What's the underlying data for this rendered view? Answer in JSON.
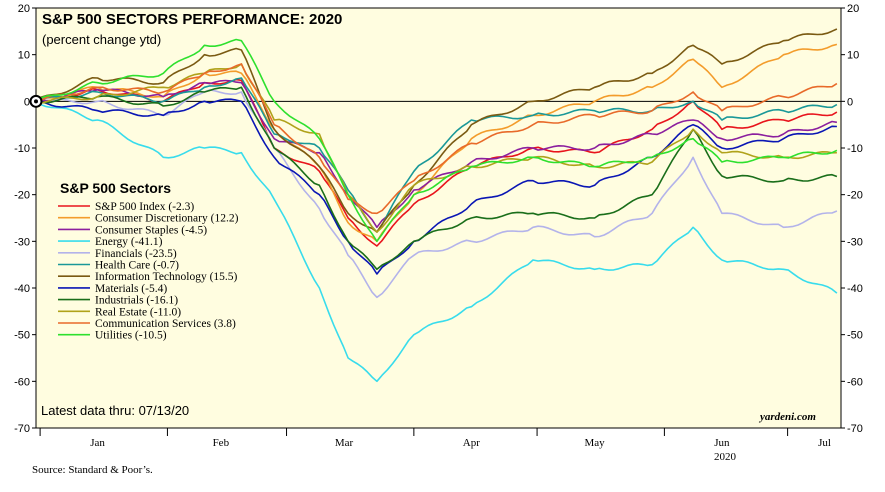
{
  "chart_data": {
    "type": "line",
    "title": "S&P 500 SECTORS PERFORMANCE: 2020",
    "subtitle": "(percent change ytd)",
    "legend_title": "S&P 500 Sectors",
    "legend_position": "left",
    "ylim": [
      -70,
      20
    ],
    "yticks": [
      20,
      10,
      0,
      -10,
      -20,
      -30,
      -40,
      -50,
      -60,
      -70
    ],
    "xlim": [
      "2019-12-31",
      "2020-07-14"
    ],
    "months": [
      {
        "label": "Jan",
        "date": "2020-01-15"
      },
      {
        "label": "Feb",
        "date": "2020-02-14"
      },
      {
        "label": "Mar",
        "date": "2020-03-15"
      },
      {
        "label": "Apr",
        "date": "2020-04-15"
      },
      {
        "label": "May",
        "date": "2020-05-15"
      },
      {
        "label": "Jun",
        "date": "2020-06-15"
      },
      {
        "label": "Jul",
        "date": "2020-07-10"
      }
    ],
    "year_label": "2020",
    "x": [
      "2019-12-31",
      "2020-01-15",
      "2020-01-31",
      "2020-02-10",
      "2020-02-19",
      "2020-02-27",
      "2020-03-09",
      "2020-03-16",
      "2020-03-23",
      "2020-04-01",
      "2020-04-15",
      "2020-04-30",
      "2020-05-15",
      "2020-05-29",
      "2020-06-08",
      "2020-06-15",
      "2020-06-30",
      "2020-07-13"
    ],
    "series": [
      {
        "name": "S&P 500 Index (-2.3)",
        "color": "#e8141c",
        "values": [
          0,
          2.5,
          0,
          4,
          4.5,
          -10,
          -15,
          -25,
          -31,
          -22,
          -14,
          -10,
          -11,
          -6,
          0,
          -6,
          -4,
          -2.3
        ]
      },
      {
        "name": "Consumer Discretionary (12.2)",
        "color": "#f39c2b",
        "values": [
          0,
          3,
          1,
          6,
          6,
          -6,
          -14,
          -26,
          -30,
          -20,
          -8,
          -3,
          0,
          3,
          9,
          3,
          10,
          12.2
        ]
      },
      {
        "name": "Consumer Staples (-4.5)",
        "color": "#8b1f9e",
        "values": [
          0,
          2.5,
          1,
          4,
          4,
          -8,
          -11,
          -20,
          -27,
          -19,
          -13,
          -10,
          -10,
          -7,
          -4,
          -8,
          -7,
          -4.5
        ]
      },
      {
        "name": "Energy (-41.1)",
        "color": "#38dcec",
        "values": [
          0,
          -4,
          -12,
          -10,
          -11,
          -21,
          -40,
          -55,
          -60,
          -50,
          -44,
          -34,
          -36,
          -35,
          -27,
          -34,
          -36,
          -41.1
        ]
      },
      {
        "name": "Financials (-23.5)",
        "color": "#b3b3ea",
        "values": [
          0,
          0,
          -3,
          2,
          2,
          -10,
          -23,
          -33,
          -42,
          -33,
          -30,
          -27,
          -29,
          -24,
          -12,
          -24,
          -27,
          -23.5
        ]
      },
      {
        "name": "Health Care (-0.7)",
        "color": "#1a9898",
        "values": [
          0,
          2,
          0,
          3,
          5,
          -7,
          -10,
          -19,
          -28,
          -15,
          -4,
          -3,
          -2,
          -2,
          0,
          -4,
          -2,
          -0.7
        ]
      },
      {
        "name": "Information Technology (15.5)",
        "color": "#7a5a12",
        "values": [
          0,
          5,
          4,
          10,
          11,
          -6,
          -14,
          -24,
          -28,
          -18,
          -5,
          0,
          3,
          6,
          12,
          8,
          13,
          15.5
        ]
      },
      {
        "name": "Materials (-5.4)",
        "color": "#0a16b4",
        "values": [
          0,
          -2,
          -3,
          0,
          0,
          -12,
          -20,
          -30,
          -37,
          -30,
          -22,
          -17,
          -18,
          -12,
          -5,
          -10,
          -8,
          -5.4
        ]
      },
      {
        "name": "Industrials (-16.1)",
        "color": "#1a6e1a",
        "values": [
          0,
          1,
          -1,
          2,
          3,
          -10,
          -18,
          -30,
          -36,
          -30,
          -25,
          -24,
          -25,
          -20,
          -6,
          -16,
          -17,
          -16.1
        ]
      },
      {
        "name": "Real Estate (-11.0)",
        "color": "#b0a21a",
        "values": [
          0,
          1,
          3,
          6,
          8,
          -4,
          -7,
          -20,
          -28,
          -18,
          -14,
          -12,
          -14,
          -13,
          -6,
          -11,
          -12,
          -11.0
        ]
      },
      {
        "name": "Communication Services (3.8)",
        "color": "#e86a2a",
        "values": [
          0,
          3,
          2,
          6,
          8,
          -5,
          -12,
          -21,
          -24,
          -17,
          -9,
          -5,
          -3,
          -2,
          2,
          -2,
          1,
          3.8
        ]
      },
      {
        "name": "Utilities (-10.5)",
        "color": "#2ee02e",
        "values": [
          0,
          4,
          6,
          12,
          13,
          0,
          -8,
          -20,
          -30,
          -20,
          -14,
          -12,
          -14,
          -12,
          -8,
          -13,
          -12,
          -10.5
        ]
      }
    ],
    "grid": false,
    "zero_line": true,
    "note": "Latest data thru: 07/13/20",
    "brand": "yardeni.com",
    "source": "Source: Standard & Poor’s."
  },
  "colors": {
    "plot_background": "#fffde0",
    "zero_line": "#000000",
    "marker": "#000000"
  }
}
